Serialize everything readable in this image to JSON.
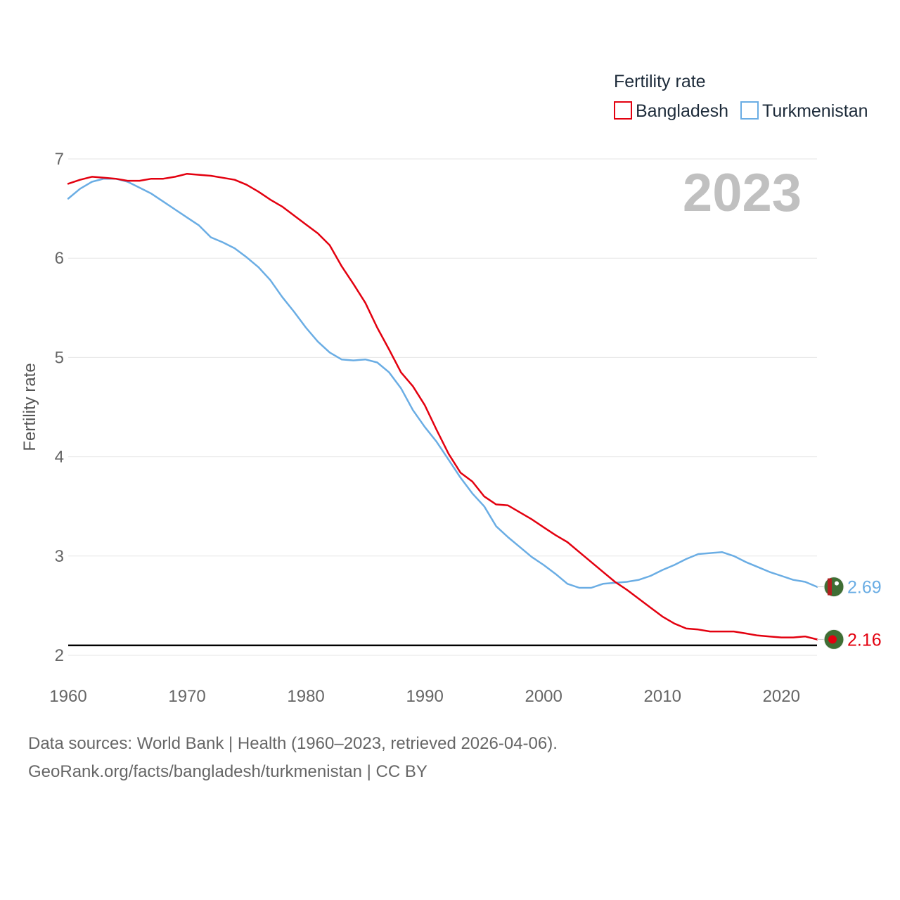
{
  "chart_data": {
    "type": "line",
    "title": "",
    "year_label": "2023",
    "xlabel": "",
    "ylabel": "Fertility rate",
    "xlim": [
      1960,
      2023
    ],
    "ylim": [
      2,
      7
    ],
    "x_ticks": [
      1960,
      1970,
      1980,
      1990,
      2000,
      2010,
      2020
    ],
    "y_ticks": [
      2,
      3,
      4,
      5,
      6,
      7
    ],
    "reference_line": 2.1,
    "legend": {
      "title": "Fertility rate",
      "position": "top-right"
    },
    "x": [
      1960,
      1961,
      1962,
      1963,
      1964,
      1965,
      1966,
      1967,
      1968,
      1969,
      1970,
      1971,
      1972,
      1973,
      1974,
      1975,
      1976,
      1977,
      1978,
      1979,
      1980,
      1981,
      1982,
      1983,
      1984,
      1985,
      1986,
      1987,
      1988,
      1989,
      1990,
      1991,
      1992,
      1993,
      1994,
      1995,
      1996,
      1997,
      1998,
      1999,
      2000,
      2001,
      2002,
      2003,
      2004,
      2005,
      2006,
      2007,
      2008,
      2009,
      2010,
      2011,
      2012,
      2013,
      2014,
      2015,
      2016,
      2017,
      2018,
      2019,
      2020,
      2021,
      2022,
      2023
    ],
    "series": [
      {
        "name": "Bangladesh",
        "color": "#e3000f",
        "end_label": "2.16",
        "values": [
          6.75,
          6.79,
          6.82,
          6.81,
          6.8,
          6.78,
          6.78,
          6.8,
          6.8,
          6.82,
          6.85,
          6.84,
          6.83,
          6.81,
          6.79,
          6.74,
          6.67,
          6.59,
          6.52,
          6.43,
          6.34,
          6.25,
          6.13,
          5.92,
          5.74,
          5.55,
          5.3,
          5.08,
          4.85,
          4.71,
          4.52,
          4.27,
          4.03,
          3.84,
          3.75,
          3.6,
          3.52,
          3.51,
          3.44,
          3.37,
          3.29,
          3.21,
          3.14,
          3.04,
          2.94,
          2.84,
          2.74,
          2.66,
          2.57,
          2.48,
          2.39,
          2.32,
          2.27,
          2.26,
          2.24,
          2.24,
          2.24,
          2.22,
          2.2,
          2.19,
          2.18,
          2.18,
          2.19,
          2.16
        ]
      },
      {
        "name": "Turkmenistan",
        "color": "#6aade4",
        "end_label": "2.69",
        "values": [
          6.6,
          6.7,
          6.77,
          6.8,
          6.8,
          6.77,
          6.71,
          6.65,
          6.57,
          6.49,
          6.41,
          6.33,
          6.21,
          6.16,
          6.1,
          6.01,
          5.91,
          5.78,
          5.61,
          5.46,
          5.3,
          5.16,
          5.05,
          4.98,
          4.97,
          4.98,
          4.95,
          4.85,
          4.69,
          4.47,
          4.3,
          4.15,
          3.97,
          3.79,
          3.63,
          3.5,
          3.3,
          3.19,
          3.09,
          2.99,
          2.91,
          2.82,
          2.72,
          2.68,
          2.68,
          2.72,
          2.73,
          2.74,
          2.76,
          2.8,
          2.86,
          2.91,
          2.97,
          3.02,
          3.03,
          3.04,
          3.0,
          2.94,
          2.89,
          2.84,
          2.8,
          2.76,
          2.74,
          2.69
        ]
      }
    ]
  },
  "footer": {
    "line1": "Data sources: World Bank | Health (1960–2023, retrieved 2026-04-06).",
    "line2": "GeoRank.org/facts/bangladesh/turkmenistan | CC BY"
  }
}
